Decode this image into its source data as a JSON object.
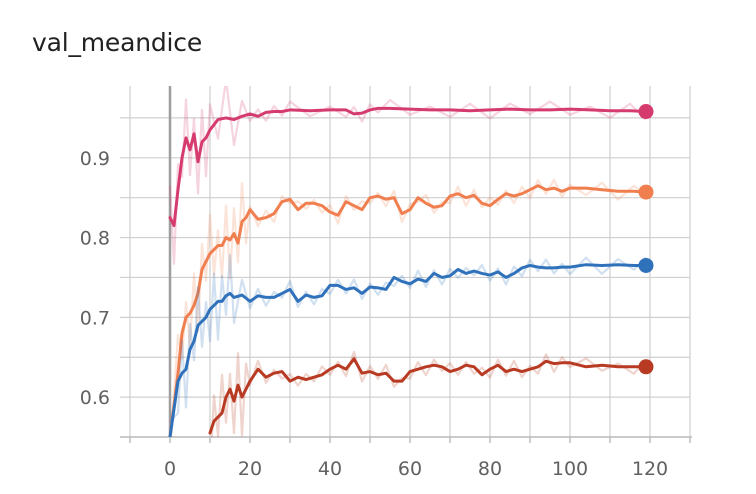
{
  "chart_data": {
    "type": "line",
    "title": "val_meandice",
    "xlabel": "",
    "ylabel": "",
    "xlim": [
      -10,
      130
    ],
    "ylim": [
      0.55,
      0.99
    ],
    "x_ticks": [
      "0",
      "20",
      "40",
      "60",
      "80",
      "100",
      "120"
    ],
    "y_ticks": [
      "0.6",
      "0.7",
      "0.8",
      "0.9"
    ],
    "grid": true,
    "series": [
      {
        "color": "#d63b6e",
        "x": [
          0,
          1,
          2,
          3,
          4,
          5,
          6,
          7,
          8,
          9,
          10,
          12,
          14,
          16,
          18,
          20,
          22,
          24,
          26,
          28,
          30,
          35,
          40,
          44,
          46,
          48,
          50,
          52,
          55,
          60,
          65,
          70,
          75,
          80,
          85,
          90,
          95,
          100,
          105,
          110,
          115,
          119
        ],
        "values": [
          0.825,
          0.815,
          0.86,
          0.9,
          0.925,
          0.91,
          0.93,
          0.895,
          0.92,
          0.925,
          0.935,
          0.948,
          0.95,
          0.948,
          0.952,
          0.955,
          0.952,
          0.957,
          0.958,
          0.958,
          0.96,
          0.959,
          0.96,
          0.96,
          0.955,
          0.956,
          0.96,
          0.962,
          0.962,
          0.961,
          0.96,
          0.96,
          0.959,
          0.96,
          0.961,
          0.96,
          0.96,
          0.961,
          0.96,
          0.959,
          0.959,
          0.958
        ]
      },
      {
        "color": "#f07e4f",
        "x": [
          0,
          2,
          3,
          4,
          5,
          6,
          7,
          8,
          9,
          10,
          11,
          12,
          13,
          14,
          15,
          16,
          17,
          18,
          19,
          20,
          22,
          24,
          26,
          28,
          30,
          32,
          34,
          36,
          38,
          40,
          42,
          44,
          46,
          48,
          50,
          52,
          54,
          56,
          58,
          60,
          62,
          64,
          66,
          68,
          70,
          72,
          74,
          76,
          78,
          80,
          82,
          84,
          86,
          88,
          90,
          92,
          94,
          96,
          98,
          100,
          104,
          108,
          112,
          116,
          119
        ],
        "values": [
          0.55,
          0.63,
          0.68,
          0.7,
          0.705,
          0.715,
          0.73,
          0.76,
          0.77,
          0.78,
          0.785,
          0.79,
          0.79,
          0.8,
          0.797,
          0.805,
          0.793,
          0.82,
          0.825,
          0.835,
          0.823,
          0.825,
          0.83,
          0.845,
          0.848,
          0.835,
          0.843,
          0.843,
          0.84,
          0.832,
          0.828,
          0.845,
          0.84,
          0.835,
          0.85,
          0.852,
          0.848,
          0.85,
          0.83,
          0.835,
          0.85,
          0.843,
          0.838,
          0.84,
          0.852,
          0.855,
          0.85,
          0.853,
          0.843,
          0.84,
          0.848,
          0.855,
          0.852,
          0.855,
          0.86,
          0.865,
          0.86,
          0.862,
          0.858,
          0.862,
          0.862,
          0.86,
          0.858,
          0.858,
          0.857
        ]
      },
      {
        "color": "#2f72bb",
        "x": [
          0,
          2,
          3,
          4,
          5,
          6,
          7,
          8,
          9,
          10,
          11,
          12,
          13,
          14,
          15,
          16,
          18,
          20,
          22,
          24,
          26,
          28,
          30,
          32,
          34,
          36,
          38,
          40,
          42,
          44,
          46,
          48,
          50,
          52,
          54,
          56,
          58,
          60,
          62,
          64,
          66,
          68,
          70,
          72,
          74,
          76,
          78,
          80,
          82,
          84,
          86,
          88,
          90,
          92,
          94,
          96,
          98,
          100,
          104,
          108,
          112,
          116,
          119
        ],
        "values": [
          0.55,
          0.62,
          0.63,
          0.635,
          0.66,
          0.67,
          0.69,
          0.695,
          0.7,
          0.71,
          0.715,
          0.72,
          0.72,
          0.727,
          0.73,
          0.725,
          0.728,
          0.72,
          0.727,
          0.725,
          0.725,
          0.73,
          0.735,
          0.72,
          0.728,
          0.725,
          0.727,
          0.74,
          0.74,
          0.735,
          0.737,
          0.73,
          0.738,
          0.737,
          0.735,
          0.75,
          0.745,
          0.742,
          0.748,
          0.745,
          0.755,
          0.75,
          0.752,
          0.76,
          0.755,
          0.758,
          0.755,
          0.753,
          0.757,
          0.75,
          0.755,
          0.762,
          0.765,
          0.763,
          0.762,
          0.762,
          0.763,
          0.763,
          0.766,
          0.765,
          0.766,
          0.765,
          0.765
        ]
      },
      {
        "color": "#b83a22",
        "x": [
          10,
          11,
          12,
          13,
          14,
          15,
          16,
          17,
          18,
          19,
          20,
          22,
          24,
          26,
          28,
          30,
          32,
          34,
          36,
          38,
          40,
          42,
          44,
          46,
          48,
          50,
          52,
          54,
          56,
          58,
          60,
          62,
          64,
          66,
          68,
          70,
          72,
          74,
          76,
          78,
          80,
          82,
          84,
          86,
          88,
          90,
          92,
          94,
          96,
          98,
          100,
          104,
          108,
          112,
          116,
          119
        ],
        "values": [
          0.555,
          0.57,
          0.575,
          0.58,
          0.6,
          0.61,
          0.595,
          0.615,
          0.6,
          0.61,
          0.62,
          0.635,
          0.625,
          0.63,
          0.632,
          0.62,
          0.625,
          0.622,
          0.625,
          0.628,
          0.635,
          0.64,
          0.635,
          0.648,
          0.63,
          0.632,
          0.628,
          0.63,
          0.62,
          0.62,
          0.632,
          0.635,
          0.638,
          0.64,
          0.638,
          0.632,
          0.635,
          0.64,
          0.638,
          0.628,
          0.635,
          0.64,
          0.632,
          0.635,
          0.632,
          0.635,
          0.638,
          0.645,
          0.642,
          0.643,
          0.643,
          0.638,
          0.64,
          0.638,
          0.638,
          0.638
        ]
      }
    ]
  }
}
